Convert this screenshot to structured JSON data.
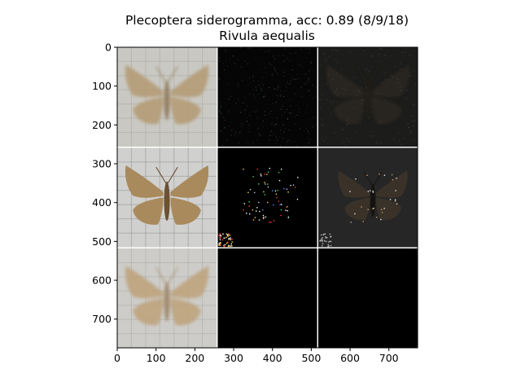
{
  "chart_data": {
    "type": "image",
    "title": "Plecoptera siderogramma, acc: 0.89 (8/9/18)",
    "subtitle": "Rivula aequalis",
    "xlim": [
      0,
      774
    ],
    "ylim": [
      774,
      0
    ],
    "xticks": [
      0,
      100,
      200,
      300,
      400,
      500,
      600,
      700
    ],
    "yticks": [
      0,
      100,
      200,
      300,
      400,
      500,
      600,
      700
    ],
    "grid_rows": 3,
    "grid_cols": 3,
    "tile_size": 256,
    "gap": 3,
    "tiles": [
      {
        "row": 0,
        "col": 0,
        "kind": "moth",
        "bg": "#c9c8c2",
        "wing": "#b49a72",
        "body": "#8e7553",
        "faded": true
      },
      {
        "row": 0,
        "col": 1,
        "kind": "noise-dark",
        "bg": "#050505"
      },
      {
        "row": 0,
        "col": 2,
        "kind": "moth-shadow",
        "bg": "#1c1c1a",
        "wing": "#2a2620"
      },
      {
        "row": 1,
        "col": 0,
        "kind": "moth",
        "bg": "#d0d0cf",
        "wing": "#a98a5c",
        "body": "#6c5232",
        "faded": false
      },
      {
        "row": 1,
        "col": 1,
        "kind": "sparse-colored",
        "bg": "#000000"
      },
      {
        "row": 1,
        "col": 2,
        "kind": "moth-dark",
        "bg": "#262626",
        "wing": "#2f2922"
      },
      {
        "row": 2,
        "col": 0,
        "kind": "moth",
        "bg": "#cdccc8",
        "wing": "#bea27a",
        "body": "#9b8260",
        "faded": true
      },
      {
        "row": 2,
        "col": 1,
        "kind": "black",
        "bg": "#000000"
      },
      {
        "row": 2,
        "col": 2,
        "kind": "black",
        "bg": "#000000"
      }
    ]
  }
}
